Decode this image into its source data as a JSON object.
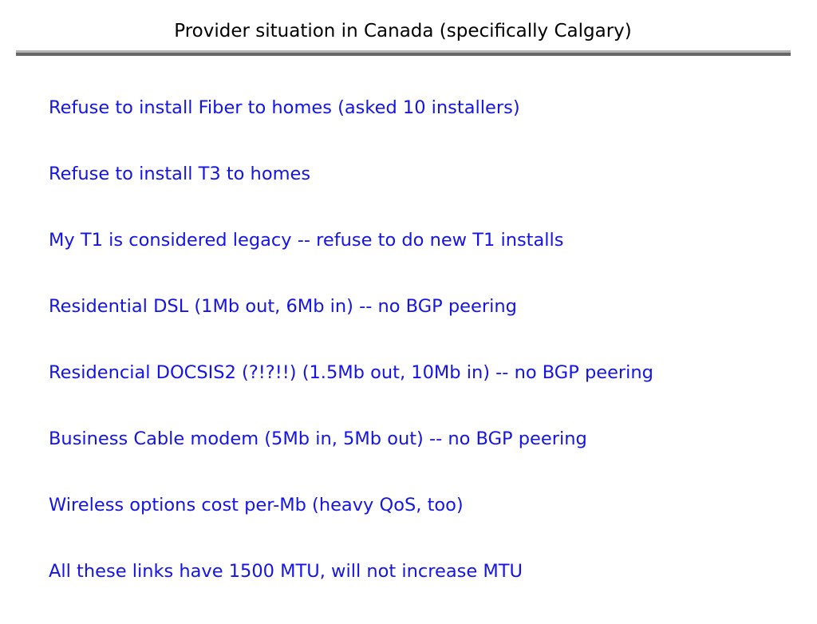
{
  "slide": {
    "title": "Provider situation in Canada (specifically Calgary)",
    "text_color": "#1414e6",
    "items": [
      "Refuse to install Fiber to homes (asked 10 installers)",
      "Refuse to install T3 to homes",
      "My T1 is considered legacy -- refuse to do new T1 installs",
      "Residential DSL (1Mb out, 6Mb in) -- no BGP peering",
      "Residencial DOCSIS2 (?!?!!) (1.5Mb out, 10Mb in) -- no BGP peering",
      "Business Cable modem (5Mb in, 5Mb out) -- no BGP peering",
      "Wireless options cost per-Mb (heavy QoS, too)",
      "All these links have 1500 MTU, will not increase MTU"
    ]
  }
}
